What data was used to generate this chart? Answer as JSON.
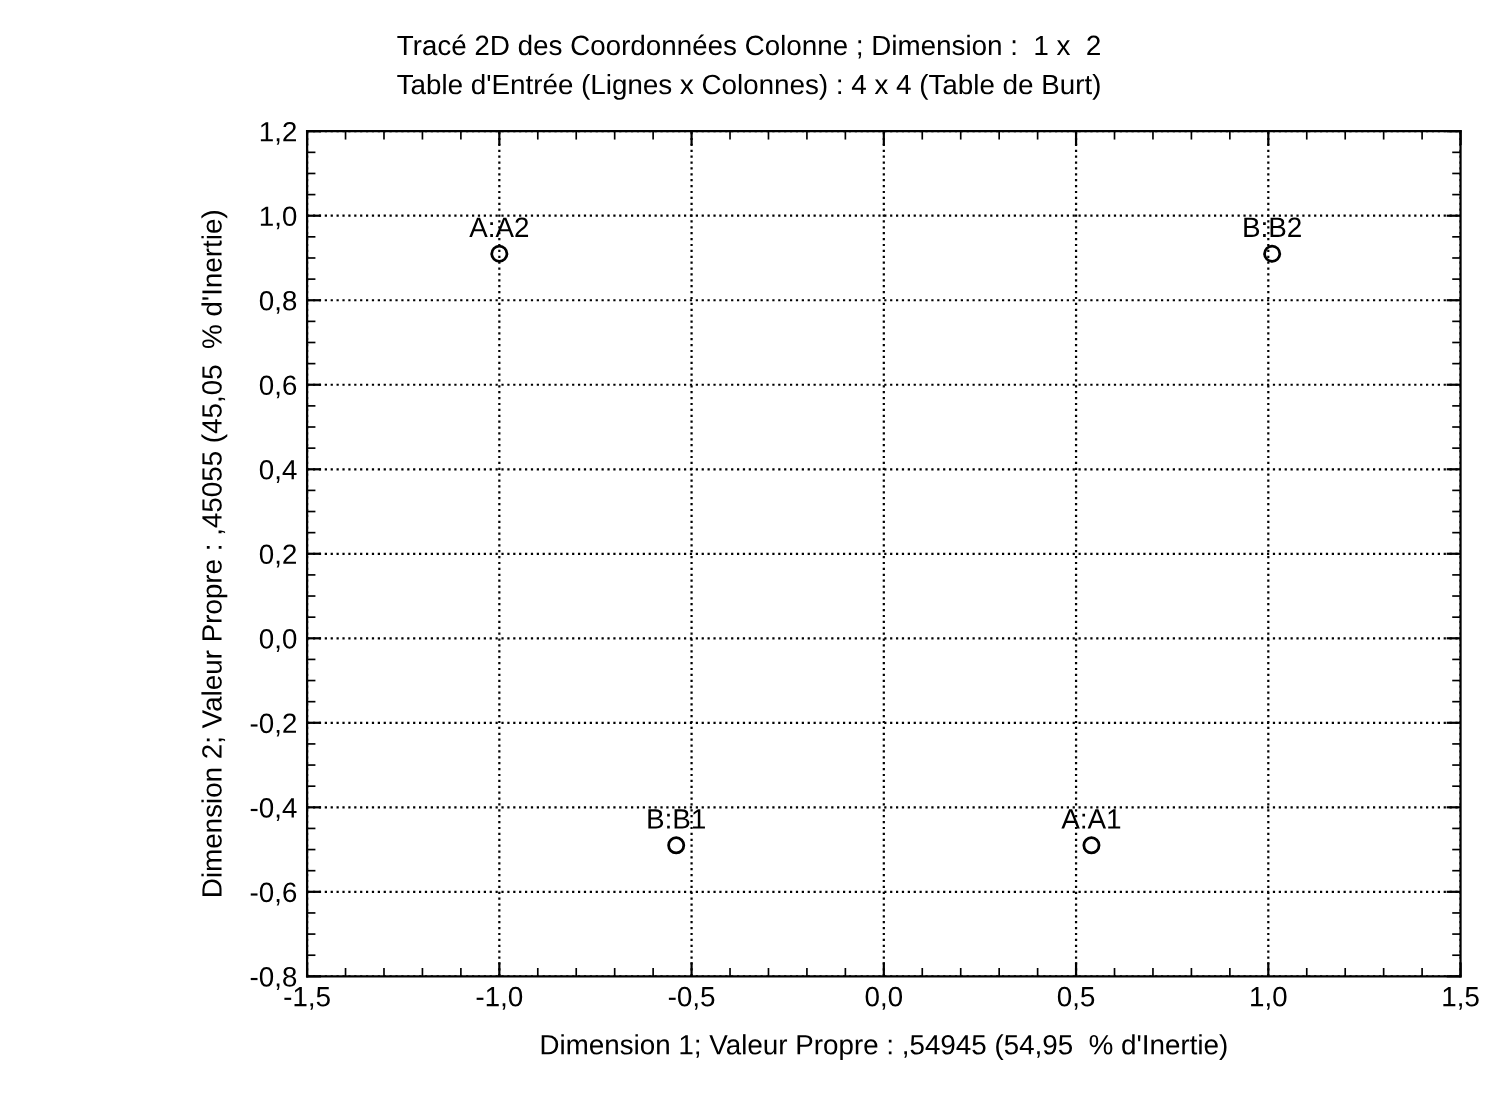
{
  "chart_data": {
    "type": "scatter",
    "title": "Tracé 2D des Coordonnées Colonne ; Dimension :  1 x  2",
    "subtitle": "Table d'Entrée (Lignes x Colonnes) : 4 x 4 (Table de Burt)",
    "xlabel": "Dimension 1; Valeur Propre : ,54945 (54,95  % d'Inertie)",
    "ylabel": "Dimension 2; Valeur Propre : ,45055 (45,05  % d'Inertie)",
    "x": [
      -1.0,
      1.01,
      -0.54,
      0.54
    ],
    "values": [
      0.91,
      0.91,
      -0.49,
      -0.49
    ],
    "color": "#000000",
    "marker": "circle",
    "annotations": [
      {
        "text": "A:A2",
        "x": -1.0,
        "y": 0.91
      },
      {
        "text": "B:B2",
        "x": 1.01,
        "y": 0.91
      },
      {
        "text": "B:B1",
        "x": -0.54,
        "y": -0.49
      },
      {
        "text": "A:A1",
        "x": 0.54,
        "y": -0.49
      }
    ],
    "xlim": [
      -1.5,
      1.5
    ],
    "ylim": [
      -0.8,
      1.2
    ],
    "xticks": [
      {
        "value": -1.5,
        "label": "-1,5"
      },
      {
        "value": -1.0,
        "label": "-1,0"
      },
      {
        "value": -0.5,
        "label": "-0,5"
      },
      {
        "value": 0.0,
        "label": "0,0"
      },
      {
        "value": 0.5,
        "label": "0,5"
      },
      {
        "value": 1.0,
        "label": "1,0"
      },
      {
        "value": 1.5,
        "label": "1,5"
      }
    ],
    "yticks": [
      {
        "value": -0.8,
        "label": "-0,8"
      },
      {
        "value": -0.6,
        "label": "-0,6"
      },
      {
        "value": -0.4,
        "label": "-0,4"
      },
      {
        "value": -0.2,
        "label": "-0,2"
      },
      {
        "value": 0.0,
        "label": "0,0"
      },
      {
        "value": 0.2,
        "label": "0,2"
      },
      {
        "value": 0.4,
        "label": "0,4"
      },
      {
        "value": 0.6,
        "label": "0,6"
      },
      {
        "value": 0.8,
        "label": "0,8"
      },
      {
        "value": 1.0,
        "label": "1,0"
      },
      {
        "value": 1.2,
        "label": "1,2"
      }
    ],
    "grid": true
  }
}
